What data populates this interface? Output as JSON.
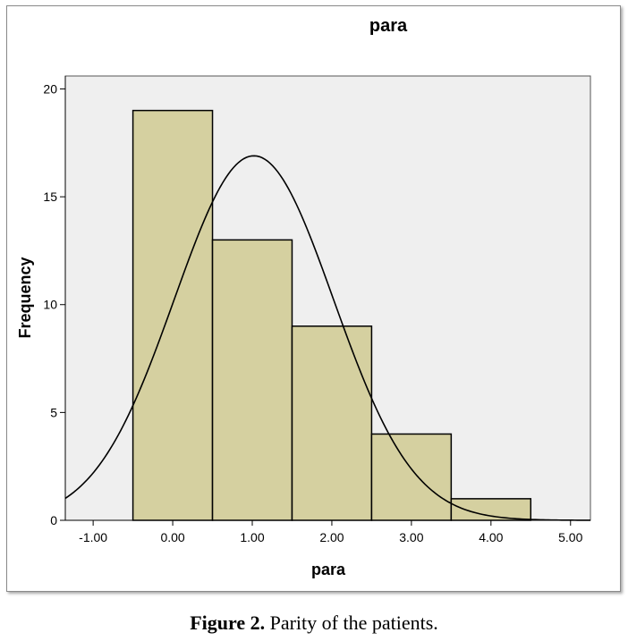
{
  "chart_data": {
    "type": "bar",
    "title": "para",
    "xlabel": "para",
    "ylabel": "Frequency",
    "categories": [
      "0.00",
      "1.00",
      "2.00",
      "3.00",
      "4.00"
    ],
    "bins": [
      {
        "from": -0.5,
        "to": 0.5,
        "value": 19
      },
      {
        "from": 0.5,
        "to": 1.5,
        "value": 13
      },
      {
        "from": 1.5,
        "to": 2.5,
        "value": 9
      },
      {
        "from": 2.5,
        "to": 3.5,
        "value": 4
      },
      {
        "from": 3.5,
        "to": 4.5,
        "value": 1
      }
    ],
    "normal_curve": {
      "mean": 1.02,
      "peak": 16.9
    },
    "xlim": [
      -1.35,
      5.25
    ],
    "ylim": [
      0,
      20.6
    ],
    "x_ticks": [
      "-1.00",
      "0.00",
      "1.00",
      "2.00",
      "3.00",
      "4.00",
      "5.00"
    ],
    "x_tick_values": [
      -1,
      0,
      1,
      2,
      3,
      4,
      5
    ],
    "y_ticks": [
      "0",
      "5",
      "10",
      "15",
      "20"
    ],
    "y_tick_values": [
      0,
      5,
      10,
      15,
      20
    ],
    "grid": false,
    "colors": {
      "bar_fill": "#d5d0a0",
      "bar_stroke": "#000000",
      "plot_bg": "#efefef",
      "curve": "#000000"
    }
  },
  "caption": {
    "label": "Figure 2.",
    "text": "Parity of the patients."
  }
}
